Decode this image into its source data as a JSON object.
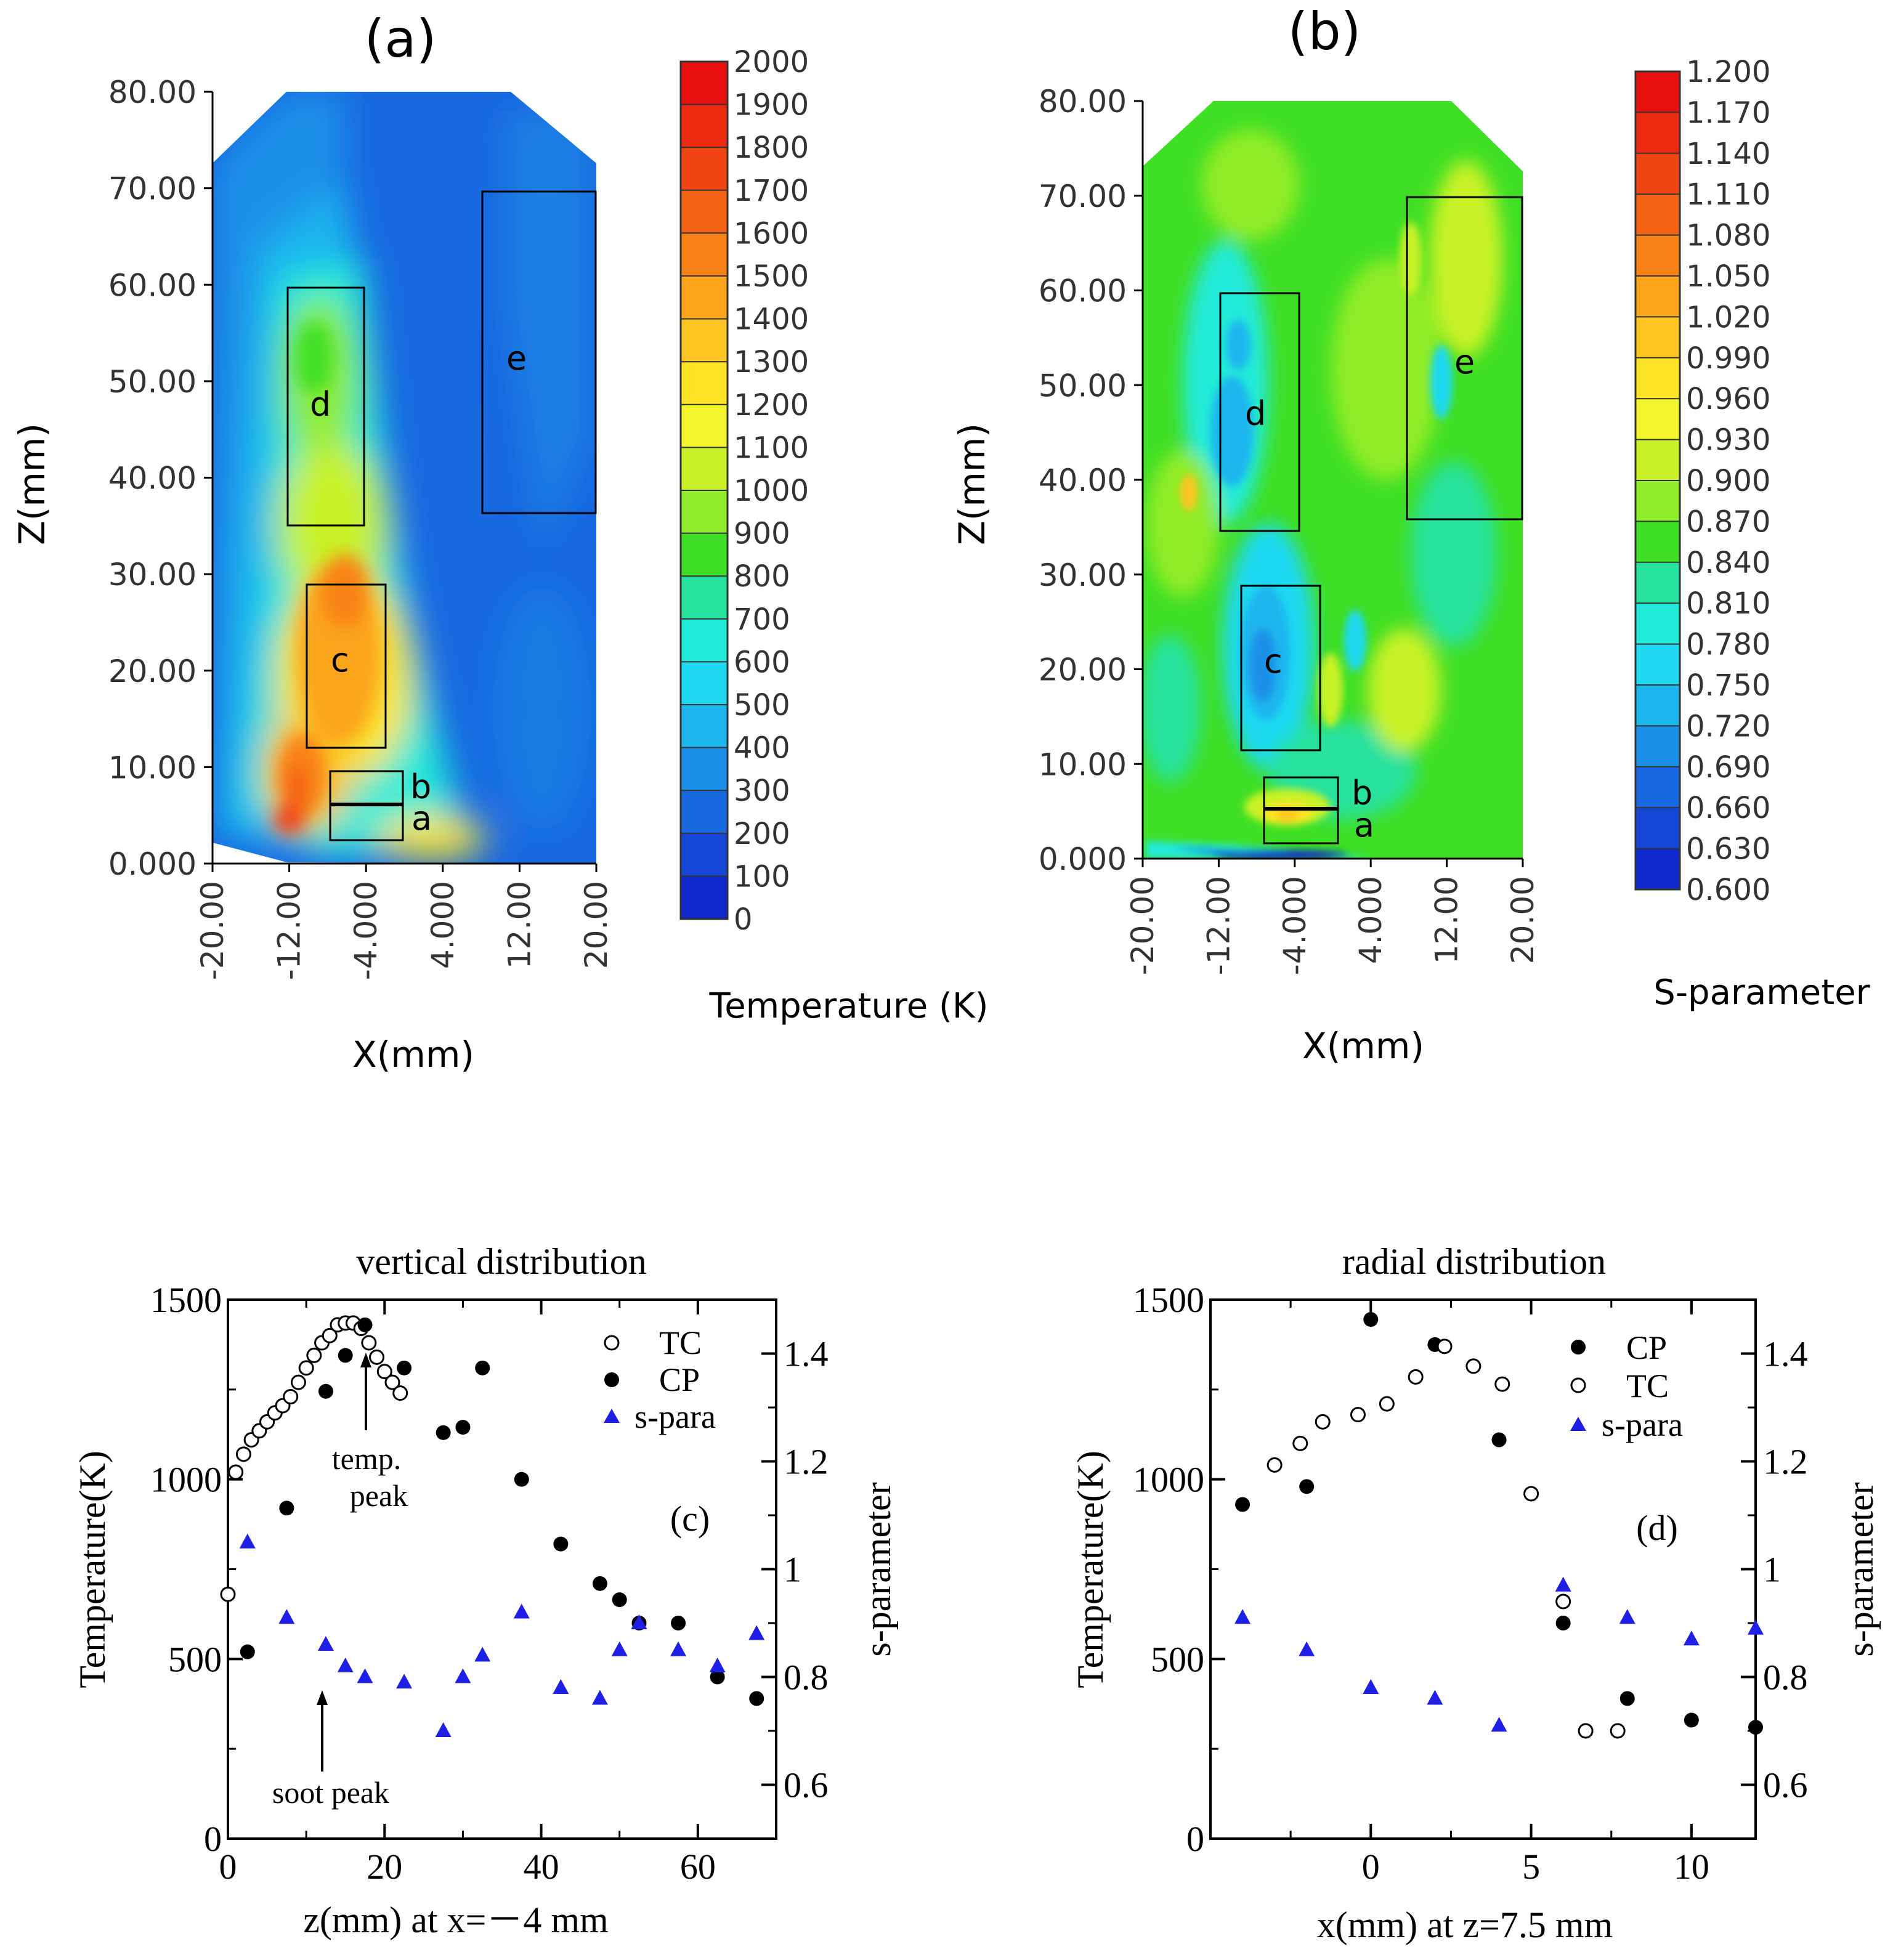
{
  "panels": {
    "a": {
      "label": "(a)",
      "xlabel": "X(mm)",
      "ylabel": "Z(mm)",
      "xticks": [
        "-20.00",
        "-12.00",
        "-4.000",
        "4.000",
        "12.00",
        "20.00"
      ],
      "xtick_values": [
        -20,
        -12,
        -4,
        4,
        12,
        20
      ],
      "yticks": [
        "0.000",
        "10.00",
        "20.00",
        "30.00",
        "40.00",
        "50.00",
        "60.00",
        "70.00",
        "80.00"
      ],
      "ytick_values": [
        0,
        10,
        20,
        30,
        40,
        50,
        60,
        70,
        80
      ],
      "colorbar_title": "Temperature (K)",
      "colorbar_labels": [
        "2000",
        "1900",
        "1800",
        "1700",
        "1600",
        "1500",
        "1400",
        "1300",
        "1200",
        "1100",
        "1000",
        "900",
        "800",
        "700",
        "600",
        "500",
        "400",
        "300",
        "200",
        "100",
        "0"
      ],
      "colorbar_colors": [
        "#e8100f",
        "#ec2a10",
        "#f04512",
        "#f46314",
        "#f88216",
        "#fba41c",
        "#fdc521",
        "#fde427",
        "#f3f62d",
        "#c8f227",
        "#8fec28",
        "#3fdf25",
        "#26e29d",
        "#21ead8",
        "#1ed9f1",
        "#1cb6ee",
        "#1a90e8",
        "#1868e0",
        "#1546d8",
        "#0f28cc",
        "#0a10b8"
      ],
      "region_labels": [
        "a",
        "b",
        "c",
        "d",
        "e"
      ]
    },
    "b": {
      "label": "(b)",
      "xlabel": "X(mm)",
      "ylabel": "Z(mm)",
      "xticks": [
        "-20.00",
        "-12.00",
        "-4.000",
        "4.000",
        "12.00",
        "20.00"
      ],
      "xtick_values": [
        -20,
        -12,
        -4,
        4,
        12,
        20
      ],
      "yticks": [
        "0.000",
        "10.00",
        "20.00",
        "30.00",
        "40.00",
        "50.00",
        "60.00",
        "70.00",
        "80.00"
      ],
      "ytick_values": [
        0,
        10,
        20,
        30,
        40,
        50,
        60,
        70,
        80
      ],
      "colorbar_title": "S-parameter",
      "colorbar_labels": [
        "1.200",
        "1.170",
        "1.140",
        "1.110",
        "1.080",
        "1.050",
        "1.020",
        "0.990",
        "0.960",
        "0.930",
        "0.900",
        "0.870",
        "0.840",
        "0.810",
        "0.780",
        "0.750",
        "0.720",
        "0.690",
        "0.660",
        "0.630",
        "0.600"
      ],
      "colorbar_colors": [
        "#e8100f",
        "#ec2a10",
        "#f04512",
        "#f46314",
        "#f88216",
        "#fba41c",
        "#fdc521",
        "#fde427",
        "#f3f62d",
        "#c8f227",
        "#8fec28",
        "#3fdf25",
        "#26e29d",
        "#21ead8",
        "#1ed9f1",
        "#1cb6ee",
        "#1a90e8",
        "#1868e0",
        "#1546d8",
        "#0f28cc",
        "#0a10b8"
      ],
      "region_labels": [
        "a",
        "b",
        "c",
        "d",
        "e"
      ]
    }
  },
  "chart_data": [
    {
      "type": "heatmap",
      "panel": "(a)",
      "title": "",
      "xlabel": "X(mm)",
      "ylabel": "Z(mm)",
      "xlim": [
        -20,
        20
      ],
      "ylim": [
        0,
        80
      ],
      "colorbar": {
        "label": "Temperature (K)",
        "range": [
          0,
          2000
        ],
        "step": 100
      },
      "boxes": [
        {
          "label": "a",
          "x": [
            -8,
            0
          ],
          "z": [
            2.5,
            6
          ]
        },
        {
          "label": "b",
          "x": [
            -8,
            0
          ],
          "z": [
            6,
            9.5
          ]
        },
        {
          "label": "c",
          "x": [
            -10,
            -2
          ],
          "z": [
            12,
            29
          ]
        },
        {
          "label": "d",
          "x": [
            -12,
            -4
          ],
          "z": [
            35,
            60
          ]
        },
        {
          "label": "e",
          "x": [
            8,
            20
          ],
          "z": [
            36,
            70
          ]
        }
      ]
    },
    {
      "type": "heatmap",
      "panel": "(b)",
      "title": "",
      "xlabel": "X(mm)",
      "ylabel": "Z(mm)",
      "xlim": [
        -20,
        20
      ],
      "ylim": [
        0,
        80
      ],
      "colorbar": {
        "label": "S-parameter",
        "range": [
          0.6,
          1.2
        ],
        "step": 0.03
      },
      "boxes": [
        {
          "label": "a",
          "x": [
            -8,
            0
          ],
          "z": [
            2,
            5.5
          ]
        },
        {
          "label": "b",
          "x": [
            -8,
            0
          ],
          "z": [
            5.5,
            9
          ]
        },
        {
          "label": "c",
          "x": [
            -10,
            -2
          ],
          "z": [
            12,
            29
          ]
        },
        {
          "label": "d",
          "x": [
            -12,
            -4
          ],
          "z": [
            35,
            60
          ]
        },
        {
          "label": "e",
          "x": [
            8,
            20
          ],
          "z": [
            36,
            70
          ]
        }
      ]
    },
    {
      "type": "scatter",
      "panel": "(c)",
      "title": "vertical distribution",
      "xlabel": "z(mm) at x=－4 mm",
      "ylabel": "Temperature(K)",
      "y2label": "s-parameter",
      "xlim": [
        0,
        70
      ],
      "ylim": [
        0,
        1500
      ],
      "y2lim": [
        0.5,
        1.5
      ],
      "xticks": [
        "0",
        "20",
        "40",
        "60"
      ],
      "xtick_values": [
        0,
        20,
        40,
        60
      ],
      "yticks": [
        "0",
        "500",
        "1000",
        "1500"
      ],
      "ytick_values": [
        0,
        500,
        1000,
        1500
      ],
      "y2ticks": [
        "0.6",
        "0.8",
        "1",
        "1.2",
        "1.4"
      ],
      "y2tick_values": [
        0.6,
        0.8,
        1.0,
        1.2,
        1.4
      ],
      "annotations": [
        {
          "text": "temp.",
          "text2": "peak",
          "x": 17.5,
          "y": 1250
        },
        {
          "text": "soot peak",
          "x": 12.5,
          "y": 380
        }
      ],
      "panel_tag": "(c)",
      "series": [
        {
          "name": "TC",
          "axis": "left",
          "marker": "open-circle",
          "color": "#000000",
          "x": [
            0,
            1,
            2,
            3,
            4,
            5,
            6,
            7,
            8,
            9,
            10,
            11,
            12,
            13,
            14,
            15,
            16,
            17,
            18,
            19,
            20,
            21,
            22
          ],
          "y": [
            680,
            1020,
            1070,
            1110,
            1135,
            1160,
            1185,
            1205,
            1230,
            1270,
            1310,
            1345,
            1380,
            1400,
            1430,
            1435,
            1435,
            1420,
            1380,
            1340,
            1300,
            1270,
            1240
          ]
        },
        {
          "name": "CP",
          "axis": "left",
          "marker": "filled-circle",
          "color": "#000000",
          "x": [
            2.5,
            7.5,
            12.5,
            15,
            17.5,
            22.5,
            27.5,
            30,
            32.5,
            37.5,
            42.5,
            47.5,
            50,
            52.5,
            57.5,
            62.5,
            67.5
          ],
          "y": [
            520,
            920,
            1245,
            1345,
            1430,
            1310,
            1130,
            1145,
            1310,
            1000,
            820,
            710,
            665,
            600,
            600,
            450,
            390
          ]
        },
        {
          "name": "s-para",
          "axis": "right",
          "marker": "filled-triangle",
          "color": "#1f1fe6",
          "x": [
            2.5,
            7.5,
            12.5,
            15,
            17.5,
            22.5,
            27.5,
            30,
            32.5,
            37.5,
            42.5,
            47.5,
            50,
            52.5,
            57.5,
            62.5,
            67.5
          ],
          "y": [
            1.05,
            0.91,
            0.86,
            0.82,
            0.8,
            0.79,
            0.7,
            0.8,
            0.84,
            0.92,
            0.78,
            0.76,
            0.85,
            0.9,
            0.85,
            0.82,
            0.88
          ]
        }
      ]
    },
    {
      "type": "scatter",
      "panel": "(d)",
      "title": "radial distribution",
      "xlabel": "x(mm) at z=7.5 mm",
      "ylabel": "Temperature(K)",
      "y2label": "s-parameter",
      "xlim": [
        -5,
        12
      ],
      "ylim": [
        0,
        1500
      ],
      "y2lim": [
        0.5,
        1.5
      ],
      "xticks": [
        "0",
        "5",
        "10"
      ],
      "xtick_values": [
        0,
        5,
        10
      ],
      "yticks": [
        "0",
        "500",
        "1000",
        "1500"
      ],
      "ytick_values": [
        0,
        500,
        1000,
        1500
      ],
      "y2ticks": [
        "0.6",
        "0.8",
        "1",
        "1.2",
        "1.4"
      ],
      "y2tick_values": [
        0.6,
        0.8,
        1.0,
        1.2,
        1.4
      ],
      "panel_tag": "(d)",
      "series": [
        {
          "name": "CP",
          "axis": "left",
          "marker": "filled-circle",
          "color": "#000000",
          "x": [
            -4,
            -2,
            0,
            2,
            4,
            6,
            8,
            10,
            12
          ],
          "y": [
            930,
            980,
            1445,
            1375,
            1110,
            600,
            390,
            330,
            310
          ]
        },
        {
          "name": "TC",
          "axis": "left",
          "marker": "open-circle",
          "color": "#000000",
          "x": [
            -3,
            -2.2,
            -1.5,
            -0.4,
            0.5,
            1.4,
            2.3,
            3.2,
            4.1,
            5,
            6,
            6.7,
            7.7
          ],
          "y": [
            1040,
            1100,
            1160,
            1180,
            1210,
            1285,
            1370,
            1315,
            1265,
            960,
            660,
            300,
            300
          ]
        },
        {
          "name": "s-para",
          "axis": "right",
          "marker": "filled-triangle",
          "color": "#1f1fe6",
          "x": [
            -4,
            -2,
            0,
            2,
            4,
            6,
            8,
            10,
            12
          ],
          "y": [
            0.91,
            0.85,
            0.78,
            0.76,
            0.71,
            0.97,
            0.91,
            0.87,
            0.89
          ]
        }
      ]
    }
  ]
}
